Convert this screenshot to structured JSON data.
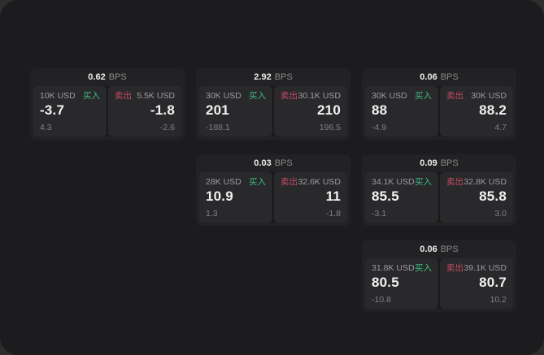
{
  "labels": {
    "bps_unit": "BPS",
    "buy": "买入",
    "sell": "卖出"
  },
  "colors": {
    "buy": "#3dbb81",
    "sell": "#c74b64",
    "surface": "#1c1c1e",
    "card": "#222224",
    "panel": "#29292b"
  },
  "cards": [
    {
      "row": 1,
      "col": 1,
      "bps": "0.62",
      "buy": {
        "size": "10K USD",
        "price": "-3.7",
        "delta": "4.3"
      },
      "sell": {
        "size": "5.5K USD",
        "price": "-1.8",
        "delta": "-2.6"
      }
    },
    {
      "row": 1,
      "col": 2,
      "bps": "2.92",
      "buy": {
        "size": "30K USD",
        "price": "201",
        "delta": "-188.1"
      },
      "sell": {
        "size": "30.1K USD",
        "price": "210",
        "delta": "196.5"
      }
    },
    {
      "row": 1,
      "col": 3,
      "bps": "0.06",
      "buy": {
        "size": "30K USD",
        "price": "88",
        "delta": "-4.9"
      },
      "sell": {
        "size": "30K USD",
        "price": "88.2",
        "delta": "4.7"
      }
    },
    {
      "row": 2,
      "col": 2,
      "bps": "0.03",
      "buy": {
        "size": "28K USD",
        "price": "10.9",
        "delta": "1.3"
      },
      "sell": {
        "size": "32.6K USD",
        "price": "11",
        "delta": "-1.8"
      }
    },
    {
      "row": 2,
      "col": 3,
      "bps": "0.09",
      "buy": {
        "size": "34.1K USD",
        "price": "85.5",
        "delta": "-3.1"
      },
      "sell": {
        "size": "32.8K USD",
        "price": "85.8",
        "delta": "3.0"
      }
    },
    {
      "row": 3,
      "col": 3,
      "bps": "0.06",
      "buy": {
        "size": "31.8K USD",
        "price": "80.5",
        "delta": "-10.8"
      },
      "sell": {
        "size": "39.1K USD",
        "price": "80.7",
        "delta": "10.2"
      }
    }
  ]
}
